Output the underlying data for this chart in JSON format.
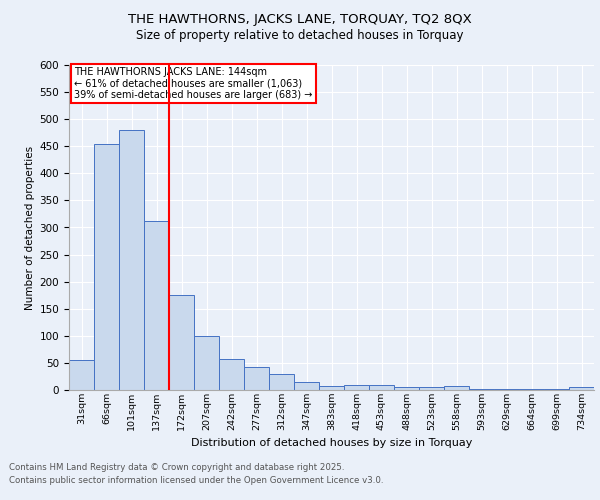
{
  "title1": "THE HAWTHORNS, JACKS LANE, TORQUAY, TQ2 8QX",
  "title2": "Size of property relative to detached houses in Torquay",
  "xlabel": "Distribution of detached houses by size in Torquay",
  "ylabel": "Number of detached properties",
  "categories": [
    "31sqm",
    "66sqm",
    "101sqm",
    "137sqm",
    "172sqm",
    "207sqm",
    "242sqm",
    "277sqm",
    "312sqm",
    "347sqm",
    "383sqm",
    "418sqm",
    "453sqm",
    "488sqm",
    "523sqm",
    "558sqm",
    "593sqm",
    "629sqm",
    "664sqm",
    "699sqm",
    "734sqm"
  ],
  "values": [
    55,
    455,
    480,
    312,
    175,
    100,
    58,
    42,
    30,
    15,
    8,
    10,
    10,
    6,
    5,
    8,
    2,
    2,
    2,
    2,
    5
  ],
  "bar_color": "#c9d9ed",
  "bar_edge_color": "#4472c4",
  "red_line_index": 3,
  "annotation_title": "THE HAWTHORNS JACKS LANE: 144sqm",
  "annotation_line2": "← 61% of detached houses are smaller (1,063)",
  "annotation_line3": "39% of semi-detached houses are larger (683) →",
  "annotation_box_color": "white",
  "annotation_box_edge": "red",
  "ylim": [
    0,
    600
  ],
  "yticks": [
    0,
    50,
    100,
    150,
    200,
    250,
    300,
    350,
    400,
    450,
    500,
    550,
    600
  ],
  "footer1": "Contains HM Land Registry data © Crown copyright and database right 2025.",
  "footer2": "Contains public sector information licensed under the Open Government Licence v3.0.",
  "bg_color": "#eaf0f9",
  "plot_bg_color": "#eaf0f9"
}
